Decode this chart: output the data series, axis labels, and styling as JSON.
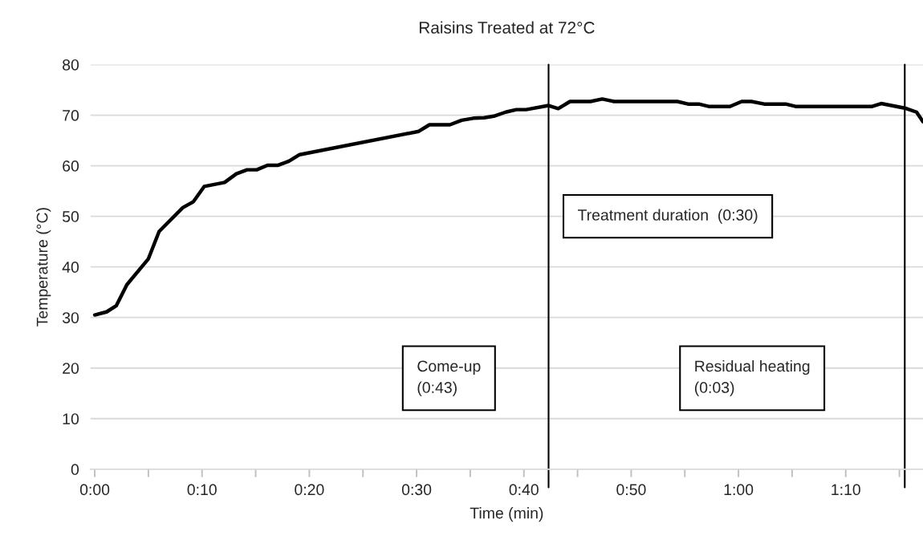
{
  "chart_data": {
    "type": "line",
    "title": "Raisins Treated at 72°C",
    "xlabel": "Time (min)",
    "ylabel": "Temperature (°C)",
    "series": [
      {
        "color": "#000000",
        "x": [
          0.0,
          1.1,
          2.0,
          3.0,
          5.0,
          6.0,
          8.2,
          9.2,
          10.2,
          12.1,
          13.2,
          14.2,
          15.1,
          16.1,
          17.1,
          18.1,
          19.1,
          30.2,
          31.2,
          33.1,
          34.2,
          35.3,
          36.3,
          37.2,
          38.3,
          39.3,
          40.2,
          42.3,
          43.2,
          44.3,
          46.2,
          47.3,
          48.4,
          54.3,
          55.3,
          56.3,
          57.3,
          59.2,
          60.3,
          61.2,
          62.4,
          64.4,
          65.4,
          72.4,
          73.3,
          75.5,
          76.6,
          77.2
        ],
        "values": [
          30.5,
          31.1,
          32.3,
          36.5,
          41.6,
          47.0,
          51.7,
          52.9,
          55.9,
          56.7,
          58.4,
          59.2,
          59.2,
          60.1,
          60.1,
          60.9,
          62.2,
          66.8,
          68.1,
          68.1,
          69.0,
          69.4,
          69.5,
          69.8,
          70.6,
          71.1,
          71.1,
          71.9,
          71.3,
          72.7,
          72.7,
          73.2,
          72.7,
          72.7,
          72.2,
          72.2,
          71.7,
          71.7,
          72.7,
          72.7,
          72.2,
          72.2,
          71.7,
          71.7,
          72.3,
          71.4,
          70.6,
          68.7
        ]
      }
    ],
    "xlim": [
      -0.4,
      77.2
    ],
    "ylim": [
      0,
      80
    ],
    "xticks": [
      {
        "value": 0,
        "label": "0:00"
      },
      {
        "value": 5,
        "label": null
      },
      {
        "value": 10,
        "label": "0:10"
      },
      {
        "value": 15,
        "label": null
      },
      {
        "value": 20,
        "label": "0:20"
      },
      {
        "value": 25,
        "label": null
      },
      {
        "value": 30,
        "label": "0:30"
      },
      {
        "value": 35,
        "label": null
      },
      {
        "value": 40,
        "label": "0:40"
      },
      {
        "value": 45,
        "label": null
      },
      {
        "value": 50,
        "label": "0:50"
      },
      {
        "value": 55,
        "label": null
      },
      {
        "value": 60,
        "label": "1:00"
      },
      {
        "value": 65,
        "label": null
      },
      {
        "value": 70,
        "label": "1:10"
      },
      {
        "value": 75,
        "label": null
      }
    ],
    "yticks": [
      0,
      10,
      20,
      30,
      40,
      50,
      60,
      70,
      80
    ],
    "grid": "y",
    "legend": false,
    "marker": "none",
    "line_style": "solid",
    "ref_lines": [
      {
        "axis": "x",
        "value": 42.3,
        "color": "#000000"
      },
      {
        "axis": "x",
        "value": 75.5,
        "color": "#000000"
      }
    ],
    "annotations": [
      "Come-up\n(0:43)",
      "Treatment duration  (0:30)",
      "Residual heating\n(0:03)"
    ]
  }
}
